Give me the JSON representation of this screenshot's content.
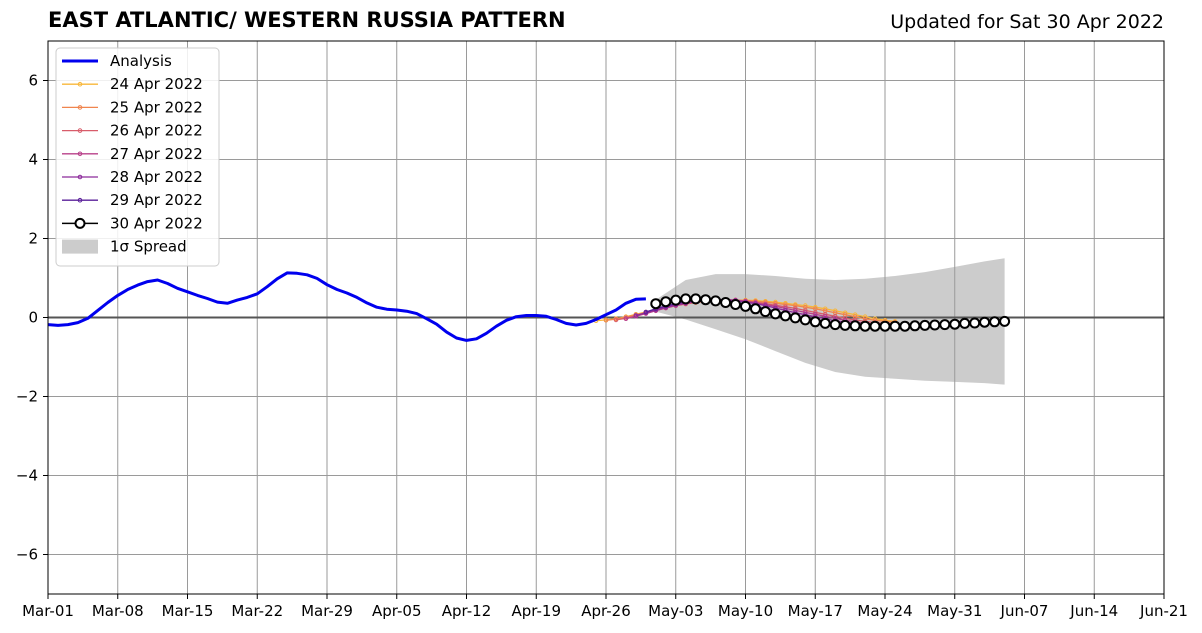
{
  "header": {
    "title": "EAST ATLANTIC/ WESTERN RUSSIA PATTERN",
    "updated": "Updated for Sat 30 Apr 2022"
  },
  "chart_data": {
    "type": "line",
    "title": "EAST ATLANTIC/ WESTERN RUSSIA PATTERN",
    "subtitle": "Updated for Sat 30 Apr 2022",
    "xlabel": "",
    "ylabel": "",
    "x_axis": {
      "start": "2022-03-01",
      "end": "2022-06-21",
      "tick_labels": [
        "Mar-01",
        "Mar-08",
        "Mar-15",
        "Mar-22",
        "Mar-29",
        "Apr-05",
        "Apr-12",
        "Apr-19",
        "Apr-26",
        "May-03",
        "May-10",
        "May-17",
        "May-24",
        "May-31",
        "Jun-07",
        "Jun-14",
        "Jun-21"
      ]
    },
    "ylim": [
      -7,
      7
    ],
    "y_ticks": [
      -6,
      -4,
      -2,
      0,
      2,
      4,
      6
    ],
    "y_tick_labels": [
      "−6",
      "−4",
      "−2",
      "0",
      "2",
      "4",
      "6"
    ],
    "grid": true,
    "legend": {
      "placement": "top-left",
      "entries": [
        "Analysis",
        "24 Apr 2022",
        "25 Apr 2022",
        "26 Apr 2022",
        "27 Apr 2022",
        "28 Apr 2022",
        "29 Apr 2022",
        "30 Apr 2022",
        "1σ Spread"
      ]
    },
    "analysis": {
      "name": "Analysis",
      "color": "#0000ee",
      "x": [
        "2022-03-01",
        "2022-03-02",
        "2022-03-03",
        "2022-03-04",
        "2022-03-05",
        "2022-03-06",
        "2022-03-07",
        "2022-03-08",
        "2022-03-09",
        "2022-03-10",
        "2022-03-11",
        "2022-03-12",
        "2022-03-13",
        "2022-03-14",
        "2022-03-15",
        "2022-03-16",
        "2022-03-17",
        "2022-03-18",
        "2022-03-19",
        "2022-03-20",
        "2022-03-21",
        "2022-03-22",
        "2022-03-23",
        "2022-03-24",
        "2022-03-25",
        "2022-03-26",
        "2022-03-27",
        "2022-03-28",
        "2022-03-29",
        "2022-03-30",
        "2022-03-31",
        "2022-04-01",
        "2022-04-02",
        "2022-04-03",
        "2022-04-04",
        "2022-04-05",
        "2022-04-06",
        "2022-04-07",
        "2022-04-08",
        "2022-04-09",
        "2022-04-10",
        "2022-04-11",
        "2022-04-12",
        "2022-04-13",
        "2022-04-14",
        "2022-04-15",
        "2022-04-16",
        "2022-04-17",
        "2022-04-18",
        "2022-04-19",
        "2022-04-20",
        "2022-04-21",
        "2022-04-22",
        "2022-04-23",
        "2022-04-24",
        "2022-04-25",
        "2022-04-26",
        "2022-04-27",
        "2022-04-28",
        "2022-04-29",
        "2022-04-30"
      ],
      "values": [
        -0.18,
        -0.2,
        -0.18,
        -0.13,
        -0.02,
        0.18,
        0.38,
        0.56,
        0.71,
        0.82,
        0.91,
        0.95,
        0.86,
        0.74,
        0.65,
        0.56,
        0.48,
        0.39,
        0.36,
        0.44,
        0.51,
        0.6,
        0.78,
        0.98,
        1.13,
        1.12,
        1.08,
        0.99,
        0.83,
        0.71,
        0.62,
        0.51,
        0.37,
        0.26,
        0.21,
        0.19,
        0.16,
        0.1,
        -0.03,
        -0.17,
        -0.37,
        -0.52,
        -0.58,
        -0.54,
        -0.4,
        -0.22,
        -0.07,
        0.02,
        0.05,
        0.05,
        0.03,
        -0.05,
        -0.15,
        -0.19,
        -0.15,
        -0.05,
        0.07,
        0.19,
        0.36,
        0.46,
        0.47
      ]
    },
    "forecasts": [
      {
        "name": "24 Apr 2022",
        "color": "#f8b73a",
        "start": "2022-04-25",
        "values": [
          -0.08,
          -0.06,
          -0.03,
          0.02,
          0.08,
          0.14,
          0.2,
          0.26,
          0.31,
          0.35,
          0.38,
          0.41,
          0.43,
          0.44,
          0.44,
          0.44,
          0.43,
          0.41,
          0.39,
          0.36,
          0.33,
          0.3,
          0.26,
          0.22,
          0.17,
          0.12,
          0.07,
          0.02,
          -0.03,
          -0.07,
          -0.1
        ]
      },
      {
        "name": "25 Apr 2022",
        "color": "#f0854e",
        "start": "2022-04-26",
        "values": [
          -0.07,
          -0.04,
          0.01,
          0.07,
          0.13,
          0.19,
          0.25,
          0.3,
          0.34,
          0.38,
          0.41,
          0.43,
          0.44,
          0.44,
          0.43,
          0.41,
          0.39,
          0.36,
          0.33,
          0.3,
          0.26,
          0.22,
          0.17,
          0.12,
          0.07,
          0.02,
          -0.03,
          -0.07,
          -0.1,
          -0.12
        ]
      },
      {
        "name": "26 Apr 2022",
        "color": "#d85c6a",
        "start": "2022-04-27",
        "values": [
          -0.06,
          -0.02,
          0.04,
          0.11,
          0.18,
          0.24,
          0.3,
          0.35,
          0.39,
          0.42,
          0.44,
          0.45,
          0.44,
          0.42,
          0.39,
          0.35,
          0.31,
          0.27,
          0.23,
          0.18,
          0.13,
          0.08,
          0.03,
          -0.02,
          -0.06,
          -0.1,
          -0.13,
          -0.15,
          -0.16
        ]
      },
      {
        "name": "27 Apr 2022",
        "color": "#b8408a",
        "start": "2022-04-28",
        "values": [
          -0.03,
          0.03,
          0.1,
          0.17,
          0.24,
          0.3,
          0.35,
          0.39,
          0.42,
          0.44,
          0.45,
          0.44,
          0.41,
          0.37,
          0.33,
          0.28,
          0.23,
          0.18,
          0.13,
          0.08,
          0.03,
          -0.02,
          -0.07,
          -0.11,
          -0.15,
          -0.18,
          -0.2,
          -0.21
        ]
      },
      {
        "name": "28 Apr 2022",
        "color": "#8c2a9b",
        "start": "2022-04-29",
        "values": [
          0.05,
          0.12,
          0.19,
          0.26,
          0.32,
          0.37,
          0.41,
          0.44,
          0.45,
          0.45,
          0.43,
          0.39,
          0.35,
          0.3,
          0.24,
          0.18,
          0.12,
          0.07,
          0.02,
          -0.03,
          -0.08,
          -0.12,
          -0.16,
          -0.19,
          -0.21,
          -0.22,
          -0.23
        ]
      },
      {
        "name": "29 Apr 2022",
        "color": "#5a1f9a",
        "start": "2022-04-30",
        "values": [
          0.14,
          0.22,
          0.29,
          0.35,
          0.4,
          0.43,
          0.45,
          0.45,
          0.43,
          0.39,
          0.34,
          0.28,
          0.22,
          0.16,
          0.1,
          0.04,
          -0.01,
          -0.06,
          -0.1,
          -0.14,
          -0.17,
          -0.19,
          -0.21,
          -0.22,
          -0.23,
          -0.23
        ]
      }
    ],
    "forecast_latest": {
      "name": "30 Apr 2022",
      "color": "#000000",
      "marker_fill": "#ffffff",
      "start": "2022-05-01",
      "values": [
        0.35,
        0.4,
        0.44,
        0.47,
        0.47,
        0.45,
        0.42,
        0.38,
        0.33,
        0.28,
        0.22,
        0.15,
        0.09,
        0.04,
        -0.01,
        -0.06,
        -0.11,
        -0.15,
        -0.18,
        -0.2,
        -0.21,
        -0.22,
        -0.22,
        -0.22,
        -0.22,
        -0.22,
        -0.21,
        -0.2,
        -0.19,
        -0.18,
        -0.17,
        -0.15,
        -0.14,
        -0.12,
        -0.11,
        -0.1
      ]
    },
    "spread": {
      "name": "1σ Spread",
      "color": "#cccccc",
      "x": [
        "2022-05-01",
        "2022-05-04",
        "2022-05-07",
        "2022-05-10",
        "2022-05-13",
        "2022-05-16",
        "2022-05-19",
        "2022-05-22",
        "2022-05-25",
        "2022-05-28",
        "2022-05-31",
        "2022-06-03",
        "2022-06-05"
      ],
      "upper": [
        0.45,
        0.95,
        1.1,
        1.1,
        1.05,
        0.98,
        0.95,
        0.98,
        1.05,
        1.15,
        1.28,
        1.42,
        1.5
      ],
      "lower": [
        0.15,
        -0.05,
        -0.3,
        -0.55,
        -0.85,
        -1.15,
        -1.38,
        -1.5,
        -1.55,
        -1.6,
        -1.63,
        -1.66,
        -1.7
      ]
    }
  }
}
